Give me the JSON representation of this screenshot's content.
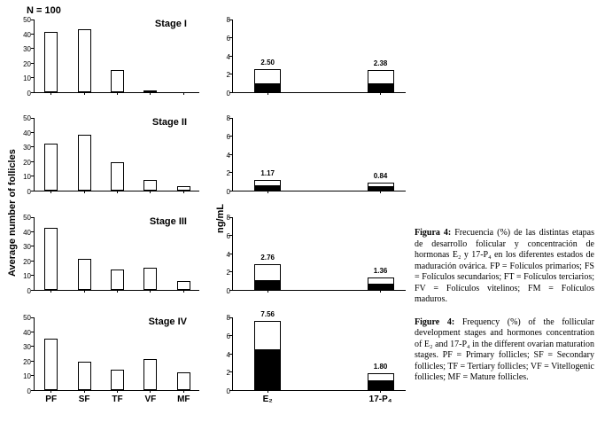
{
  "figure": {
    "n_label": "N = 100",
    "stages": [
      "Stage I",
      "Stage II",
      "Stage III",
      "Stage IV"
    ]
  },
  "captions": {
    "es": {
      "label": "Figura 4:",
      "text": "Frecuencia (%) de las distintas etapas de desarrollo folicular y concentración de hormonas E₂ y 17-P₄ en los diferentes estados de maduración ovárica. FP = Folículos primarios; FS = Folículos secundarios; FT = Folículos terciarios; FV = Folículos vitelinos; FM = Folículos maduros."
    },
    "en": {
      "label": "Figure 4:",
      "text": "Frequency (%) of the follicular development stages and hormones concentration of E₂ and 17-P₄ in the different ovarian maturation stages. PF = Primary follicles; SF = Secondary follicles; TF = Tertiary follicles; VF = Vitellogenic follicles; MF = Mature follicles."
    }
  },
  "chart_data": [
    {
      "id": "stage1-follicle-chart",
      "type": "bar",
      "stage": "Stage I",
      "categories": [
        "PF",
        "SF",
        "TF",
        "VF",
        "MF"
      ],
      "values": [
        41,
        43,
        15,
        1,
        0
      ],
      "ylabel": "Average number of follicles",
      "ylim": [
        0,
        50
      ],
      "yticks": [
        0,
        10,
        20,
        30,
        40,
        50
      ],
      "grid": false
    },
    {
      "id": "stage2-follicle-chart",
      "type": "bar",
      "stage": "Stage II",
      "categories": [
        "PF",
        "SF",
        "TF",
        "VF",
        "MF"
      ],
      "values": [
        32,
        38,
        19,
        7,
        3
      ],
      "ylim": [
        0,
        50
      ],
      "yticks": [
        0,
        10,
        20,
        30,
        40,
        50
      ],
      "grid": false
    },
    {
      "id": "stage3-follicle-chart",
      "type": "bar",
      "stage": "Stage III",
      "categories": [
        "PF",
        "SF",
        "TF",
        "VF",
        "MF"
      ],
      "values": [
        42,
        21,
        14,
        15,
        6
      ],
      "ylim": [
        0,
        50
      ],
      "yticks": [
        0,
        10,
        20,
        30,
        40,
        50
      ],
      "grid": false
    },
    {
      "id": "stage4-follicle-chart",
      "type": "bar",
      "stage": "Stage IV",
      "categories": [
        "PF",
        "SF",
        "TF",
        "VF",
        "MF"
      ],
      "values": [
        35,
        19,
        14,
        21,
        12
      ],
      "ylim": [
        0,
        50
      ],
      "yticks": [
        0,
        10,
        20,
        30,
        40,
        50
      ],
      "grid": false
    },
    {
      "id": "stage1-hormone-chart",
      "type": "stacked-bar",
      "stage": "Stage I",
      "categories": [
        "E₂",
        "17-P₄"
      ],
      "totals": [
        2.5,
        2.38
      ],
      "black_portion": [
        0.9,
        0.9
      ],
      "value_labels": [
        "2.50",
        "2.38"
      ],
      "ylabel": "ng/mL",
      "ylim": [
        0,
        8
      ],
      "yticks": [
        0,
        2,
        4,
        6,
        8
      ],
      "grid": false
    },
    {
      "id": "stage2-hormone-chart",
      "type": "stacked-bar",
      "stage": "Stage II",
      "categories": [
        "E₂",
        "17-P₄"
      ],
      "totals": [
        1.17,
        0.84
      ],
      "black_portion": [
        0.45,
        0.35
      ],
      "value_labels": [
        "1.17",
        "0.84"
      ],
      "ylim": [
        0,
        8
      ],
      "yticks": [
        0,
        2,
        4,
        6,
        8
      ],
      "grid": false
    },
    {
      "id": "stage3-hormone-chart",
      "type": "stacked-bar",
      "stage": "Stage III",
      "categories": [
        "E₂",
        "17-P₄"
      ],
      "totals": [
        2.76,
        1.36
      ],
      "black_portion": [
        1.0,
        0.55
      ],
      "value_labels": [
        "2.76",
        "1.36"
      ],
      "ylim": [
        0,
        8
      ],
      "yticks": [
        0,
        2,
        4,
        6,
        8
      ],
      "grid": false
    },
    {
      "id": "stage4-hormone-chart",
      "type": "stacked-bar",
      "stage": "Stage IV",
      "categories": [
        "E₂",
        "17-P₄"
      ],
      "totals": [
        7.56,
        1.8
      ],
      "black_portion": [
        4.3,
        0.95
      ],
      "value_labels": [
        "7.56",
        "1.80"
      ],
      "ylim": [
        0,
        8
      ],
      "yticks": [
        0,
        2,
        4,
        6,
        8
      ],
      "grid": false
    }
  ]
}
